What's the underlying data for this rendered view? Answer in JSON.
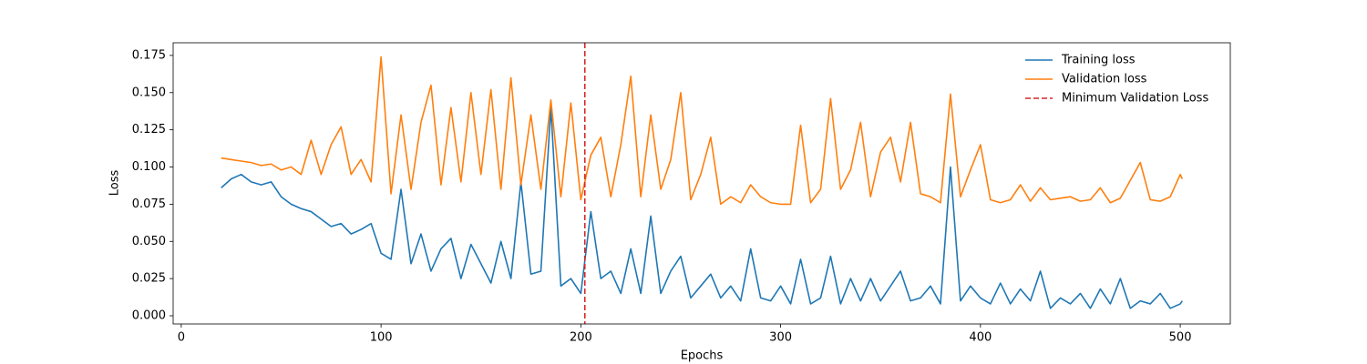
{
  "chart_data": {
    "type": "line",
    "xlabel": "Epochs",
    "ylabel": "Loss",
    "x": [
      20,
      25,
      30,
      35,
      40,
      45,
      50,
      55,
      60,
      65,
      70,
      75,
      80,
      85,
      90,
      95,
      100,
      105,
      110,
      115,
      120,
      125,
      130,
      135,
      140,
      145,
      150,
      155,
      160,
      165,
      170,
      175,
      180,
      185,
      190,
      195,
      200,
      205,
      210,
      215,
      220,
      225,
      230,
      235,
      240,
      245,
      250,
      255,
      260,
      265,
      270,
      275,
      280,
      285,
      290,
      295,
      300,
      305,
      310,
      315,
      320,
      325,
      330,
      335,
      340,
      345,
      350,
      355,
      360,
      365,
      370,
      375,
      380,
      385,
      390,
      395,
      400,
      405,
      410,
      415,
      420,
      425,
      430,
      435,
      440,
      445,
      450,
      455,
      460,
      465,
      470,
      475,
      480,
      485,
      490,
      495,
      500,
      501
    ],
    "series": [
      {
        "name": "Training loss",
        "color": "#1f77b4",
        "values": [
          0.086,
          0.092,
          0.095,
          0.09,
          0.088,
          0.09,
          0.08,
          0.075,
          0.072,
          0.07,
          0.065,
          0.06,
          0.062,
          0.055,
          0.058,
          0.062,
          0.042,
          0.038,
          0.085,
          0.035,
          0.055,
          0.03,
          0.045,
          0.052,
          0.025,
          0.048,
          0.035,
          0.022,
          0.05,
          0.025,
          0.09,
          0.028,
          0.03,
          0.14,
          0.02,
          0.025,
          0.015,
          0.07,
          0.025,
          0.03,
          0.015,
          0.045,
          0.015,
          0.067,
          0.015,
          0.03,
          0.04,
          0.012,
          0.02,
          0.028,
          0.012,
          0.02,
          0.01,
          0.045,
          0.012,
          0.01,
          0.02,
          0.008,
          0.038,
          0.008,
          0.012,
          0.04,
          0.008,
          0.025,
          0.01,
          0.025,
          0.01,
          0.02,
          0.03,
          0.01,
          0.012,
          0.02,
          0.008,
          0.1,
          0.01,
          0.02,
          0.012,
          0.008,
          0.022,
          0.008,
          0.018,
          0.01,
          0.03,
          0.005,
          0.012,
          0.008,
          0.015,
          0.005,
          0.018,
          0.008,
          0.025,
          0.005,
          0.01,
          0.008,
          0.015,
          0.005,
          0.008,
          0.01
        ]
      },
      {
        "name": "Validation loss",
        "color": "#ff7f0e",
        "values": [
          0.106,
          0.105,
          0.104,
          0.103,
          0.101,
          0.102,
          0.098,
          0.1,
          0.095,
          0.118,
          0.095,
          0.115,
          0.127,
          0.095,
          0.105,
          0.09,
          0.174,
          0.082,
          0.135,
          0.085,
          0.13,
          0.155,
          0.088,
          0.14,
          0.09,
          0.15,
          0.095,
          0.152,
          0.085,
          0.16,
          0.088,
          0.135,
          0.085,
          0.145,
          0.08,
          0.143,
          0.078,
          0.108,
          0.12,
          0.08,
          0.115,
          0.161,
          0.08,
          0.135,
          0.085,
          0.105,
          0.15,
          0.078,
          0.095,
          0.12,
          0.075,
          0.08,
          0.076,
          0.088,
          0.08,
          0.076,
          0.075,
          0.075,
          0.128,
          0.076,
          0.085,
          0.146,
          0.085,
          0.098,
          0.13,
          0.08,
          0.11,
          0.12,
          0.09,
          0.13,
          0.082,
          0.08,
          0.076,
          0.149,
          0.08,
          0.098,
          0.115,
          0.078,
          0.076,
          0.078,
          0.088,
          0.077,
          0.086,
          0.078,
          0.079,
          0.08,
          0.077,
          0.078,
          0.086,
          0.076,
          0.079,
          0.091,
          0.103,
          0.078,
          0.077,
          0.08,
          0.095,
          0.092
        ]
      }
    ],
    "vline": {
      "name": "Minimum Validation Loss",
      "x": 202,
      "color": "#d62728"
    },
    "xlim": [
      -4.05,
      525.05
    ],
    "ylim": [
      -0.0055,
      0.1835
    ],
    "xticks": [
      0,
      100,
      200,
      300,
      400,
      500
    ],
    "yticks": [
      {
        "value": 0,
        "label": "0.000"
      },
      {
        "value": 0.025,
        "label": "0.025"
      },
      {
        "value": 0.05,
        "label": "0.050"
      },
      {
        "value": 0.075,
        "label": "0.075"
      },
      {
        "value": 0.1,
        "label": "0.100"
      },
      {
        "value": 0.125,
        "label": "0.125"
      },
      {
        "value": 0.15,
        "label": "0.150"
      },
      {
        "value": 0.175,
        "label": "0.175"
      }
    ],
    "legend": "upper right",
    "grid": false
  }
}
